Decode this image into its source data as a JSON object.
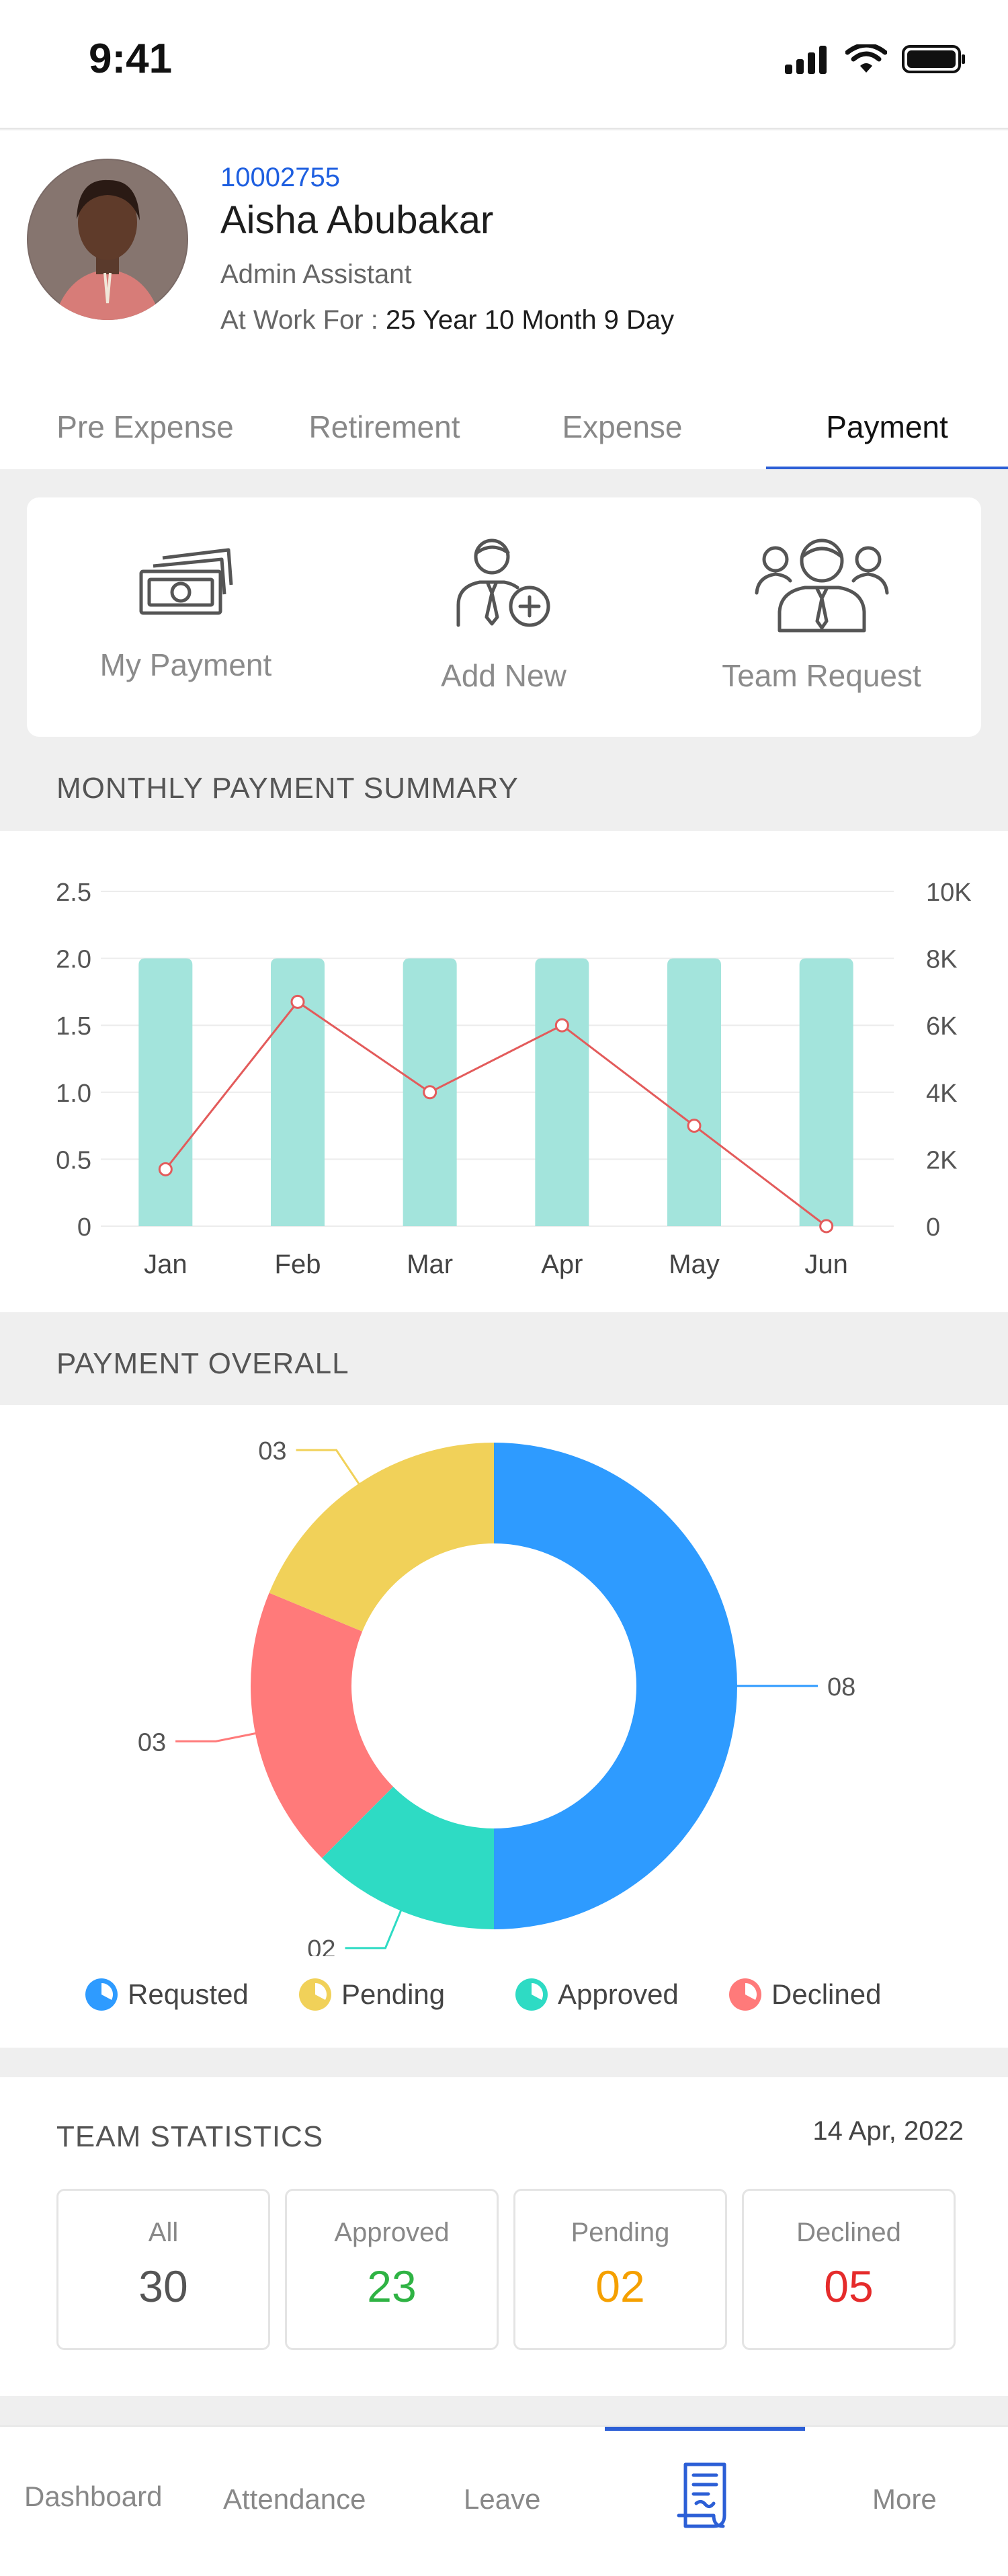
{
  "status": {
    "time": "9:41"
  },
  "profile": {
    "id": "10002755",
    "name": "Aisha Abubakar",
    "role": "Admin Assistant",
    "work_label": "At Work For : ",
    "work_value": "25 Year 10 Month 9 Day"
  },
  "tabs": [
    {
      "label": "Pre Expense",
      "active": false
    },
    {
      "label": "Retirement",
      "active": false
    },
    {
      "label": "Expense",
      "active": false
    },
    {
      "label": "Payment",
      "active": true
    }
  ],
  "actions": [
    {
      "label": "My Payment",
      "icon": "money-stack-icon"
    },
    {
      "label": "Add New",
      "icon": "add-user-icon"
    },
    {
      "label": "Team Request",
      "icon": "team-icon"
    }
  ],
  "monthly_summary": {
    "title": "MONTHLY PAYMENT SUMMARY"
  },
  "payment_overall": {
    "title": "PAYMENT OVERALL"
  },
  "chart_data": [
    {
      "type": "bar",
      "categories": [
        "Jan",
        "Feb",
        "Mar",
        "Apr",
        "May",
        "Jun"
      ],
      "series": [
        {
          "axis": "left",
          "kind": "bar",
          "values": [
            2.0,
            2.0,
            2.0,
            2.0,
            2.0,
            2.0
          ],
          "color": "#a3e4dc"
        },
        {
          "axis": "right",
          "kind": "line",
          "values": [
            1700,
            6700,
            4000,
            6000,
            3000,
            0
          ],
          "color": "#e35b5b"
        }
      ],
      "y_left": {
        "ticks": [
          "0",
          "0.5",
          "1.0",
          "1.5",
          "2.0",
          "2.5"
        ],
        "ylim": [
          0,
          2.5
        ]
      },
      "y_right": {
        "ticks": [
          "0",
          "2K",
          "4K",
          "6K",
          "8K",
          "10K"
        ],
        "ylim": [
          0,
          10000
        ]
      },
      "grid": true
    },
    {
      "type": "pie",
      "donut": true,
      "slices": [
        {
          "label": "Requsted",
          "value": 8,
          "display": "08",
          "color": "#2e9bff"
        },
        {
          "label": "Approved",
          "value": 2,
          "display": "02",
          "color": "#2edbc4"
        },
        {
          "label": "Declined",
          "value": 3,
          "display": "03",
          "color": "#ff7a7a"
        },
        {
          "label": "Pending",
          "value": 3,
          "display": "03",
          "color": "#f1d159"
        }
      ],
      "legend": [
        "Requsted",
        "Pending",
        "Approved",
        "Declined"
      ],
      "legend_position": "bottom"
    }
  ],
  "team": {
    "title": "TEAM STATISTICS",
    "date": "14 Apr, 2022",
    "stats": [
      {
        "label": "All",
        "value": "30",
        "color": "#555555"
      },
      {
        "label": "Approved",
        "value": "23",
        "color": "#2fb344"
      },
      {
        "label": "Pending",
        "value": "02",
        "color": "#f5a000"
      },
      {
        "label": "Declined",
        "value": "05",
        "color": "#e52b2b"
      }
    ]
  },
  "nav": [
    {
      "label": "Dashboard",
      "icon": ""
    },
    {
      "label": "Attendance",
      "icon": ""
    },
    {
      "label": "Leave",
      "icon": ""
    },
    {
      "label": "",
      "icon": "receipt-icon",
      "active": true
    },
    {
      "label": "More",
      "icon": ""
    }
  ]
}
